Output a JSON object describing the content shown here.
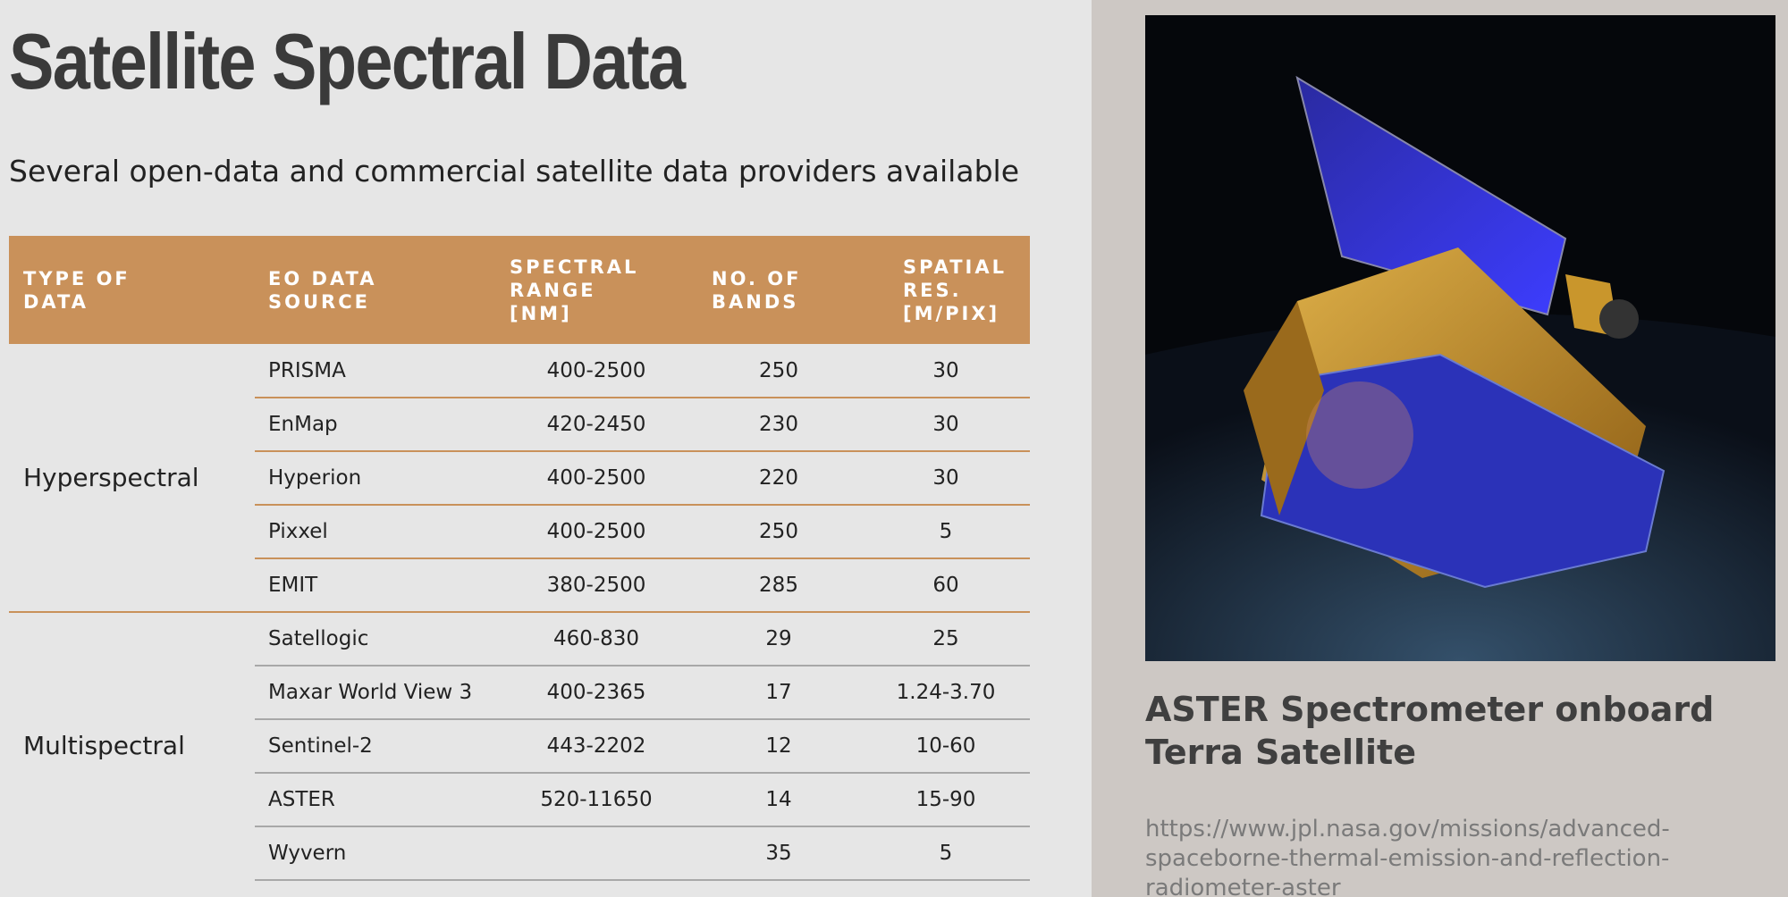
{
  "header": {
    "title": "Satellite Spectral Data",
    "subtitle": "Several open-data and commercial satellite data providers available"
  },
  "table": {
    "headers": [
      "TYPE OF DATA",
      "EO DATA SOURCE",
      "SPECTRAL RANGE [NM]",
      "NO. OF BANDS",
      "SPATIAL RES. [M/PIX]"
    ],
    "groups": [
      {
        "type": "Hyperspectral",
        "rows": [
          {
            "source": "PRISMA",
            "range": "400-2500",
            "bands": 250,
            "res": 30
          },
          {
            "source": "EnMap",
            "range": "420-2450",
            "bands": 230,
            "res": 30
          },
          {
            "source": "Hyperion",
            "range": "400-2500",
            "bands": 220,
            "res": 30
          },
          {
            "source": "Pixxel",
            "range": "400-2500",
            "bands": 250,
            "res": 5
          },
          {
            "source": "EMIT",
            "range": "380-2500",
            "bands": 285,
            "res": 60
          }
        ]
      },
      {
        "type": "Multispectral",
        "rows": [
          {
            "source": "Satellogic",
            "range": "460-830",
            "bands": 29,
            "res": 25
          },
          {
            "source": "Maxar World View 3",
            "range": "400-2365",
            "bands": 17,
            "res": "1.24-3.70"
          },
          {
            "source": "Sentinel-2",
            "range": "443-2202",
            "bands": 12,
            "res": "10-60"
          },
          {
            "source": "ASTER",
            "range": "520-11650",
            "bands": 14,
            "res": "15-90"
          },
          {
            "source": "Wyvern",
            "bands": 35,
            "res": 5
          }
        ]
      }
    ]
  },
  "figure": {
    "caption": [
      "ASTER Spectrometer onboard",
      "Terra Satellite"
    ],
    "url": "https://www.jpl.nasa.gov/missions/advanced-spaceborne-thermal-emission-and-reflection-radiometer-aster"
  }
}
